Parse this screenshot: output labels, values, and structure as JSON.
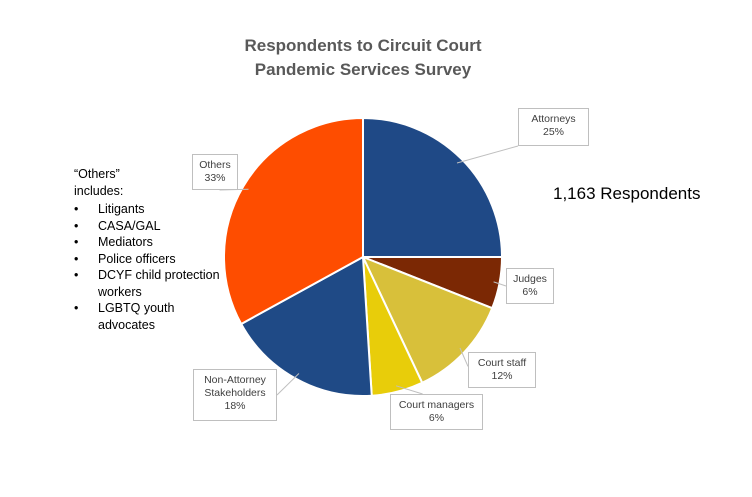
{
  "chart_data": {
    "type": "pie",
    "title": [
      "Respondents to Circuit Court",
      "Pandemic Services Survey"
    ],
    "slices": [
      {
        "name": "Attorneys",
        "label": "25%",
        "value": 25,
        "color": "#1f4986"
      },
      {
        "name": "Judges",
        "label": "6%",
        "value": 6,
        "color": "#7b2804"
      },
      {
        "name": "Court staff",
        "label": "12%",
        "value": 12,
        "color": "#d8c03a"
      },
      {
        "name": "Court managers",
        "label": "6%",
        "value": 6,
        "color": "#e8cd0a"
      },
      {
        "name": "Non-Attorney Stakeholders",
        "name_lines": [
          "Non-Attorney",
          "Stakeholders"
        ],
        "label": "18%",
        "value": 18,
        "color": "#1f4a86"
      },
      {
        "name": "Others",
        "label": "33%",
        "value": 33,
        "color": "#fe4d00"
      }
    ],
    "start_angle_deg": 0,
    "direction": "clockwise"
  },
  "annotations": {
    "respondents": "1,163 Respondents",
    "others_heading": [
      "“Others”",
      "includes:"
    ],
    "others_items": [
      [
        "Litigants"
      ],
      [
        "CASA/GAL"
      ],
      [
        "Mediators"
      ],
      [
        "Police officers"
      ],
      [
        "DCYF child protection",
        "workers"
      ],
      [
        "LGBTQ youth",
        "advocates"
      ]
    ]
  }
}
